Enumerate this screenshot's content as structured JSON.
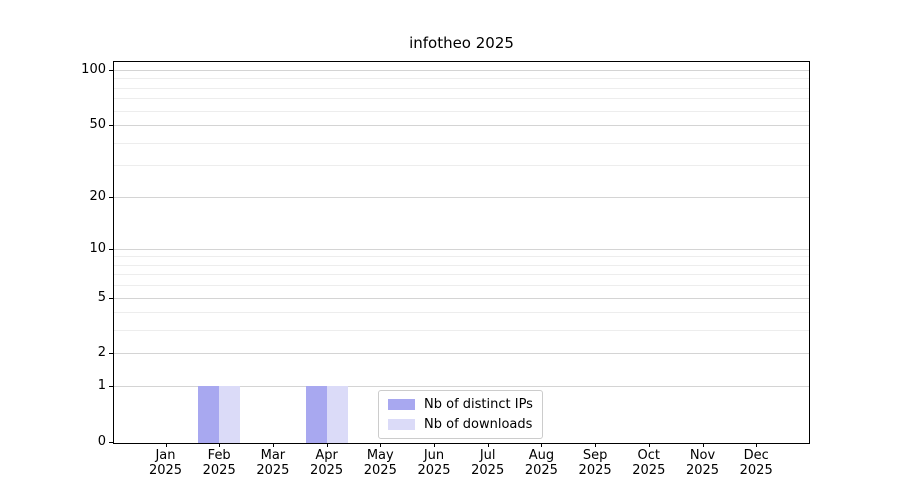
{
  "chart_data": {
    "type": "bar",
    "title": "infotheo 2025",
    "x": {
      "months": [
        "Jan",
        "Feb",
        "Mar",
        "Apr",
        "May",
        "Jun",
        "Jul",
        "Aug",
        "Sep",
        "Oct",
        "Nov",
        "Dec"
      ],
      "year": "2025"
    },
    "series": [
      {
        "name": "Nb of distinct IPs",
        "color": "#a8a8f0",
        "values": [
          0,
          1,
          0,
          1,
          0,
          0,
          0,
          0,
          0,
          0,
          0,
          0
        ]
      },
      {
        "name": "Nb of downloads",
        "color": "#dbdbf8",
        "values": [
          0,
          1,
          0,
          1,
          0,
          0,
          0,
          0,
          0,
          0,
          0,
          0
        ]
      }
    ],
    "yscale": "log1p",
    "ylim": [
      0,
      110
    ],
    "y_major_ticks": [
      100,
      50,
      20,
      10,
      5,
      2,
      1,
      0
    ],
    "y_minor_gridlines": [
      90,
      80,
      70,
      60,
      40,
      30,
      9,
      8,
      7,
      6,
      4,
      3
    ],
    "grid": "horizontal-only",
    "legend": {
      "position": "lower-center"
    },
    "colors": {
      "major_grid": "#d4d4d4",
      "minor_grid": "#ededed",
      "axis": "#000000",
      "text": "#000000",
      "background": "#ffffff"
    }
  }
}
